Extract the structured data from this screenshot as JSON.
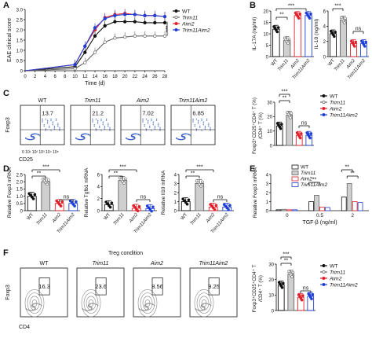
{
  "colors": {
    "wt": "#111111",
    "trim11": "#666666",
    "aim2": "#e0202a",
    "dko": "#1f3fd6"
  },
  "panel_letters": [
    "A",
    "B",
    "C",
    "D",
    "E",
    "F"
  ],
  "groups": {
    "wt": "WT",
    "trim11": "Trim11",
    "aim2": "Aim2",
    "dko": "Trim11Aim2"
  },
  "panel_A": {
    "ylabel": "EAE clinical score",
    "xlabel": "Time (d)",
    "x_ticks": [
      "0",
      "2",
      "4",
      "6",
      "8",
      "10",
      "12",
      "14",
      "16",
      "18",
      "20",
      "22",
      "24",
      "26",
      "28"
    ],
    "y_ticks": [
      "0",
      "0.5",
      "1.0",
      "1.5",
      "2.0",
      "2.5",
      "3.0"
    ],
    "sig": "***"
  },
  "panel_B": {
    "ylabel_left": "IL-17A (ng/ml)",
    "ylabel_right": "IL-10 (ng/ml)",
    "left_ticks": [
      "0",
      "5",
      "10",
      "15",
      "20"
    ],
    "right_ticks": [
      "0",
      "2",
      "4",
      "6"
    ],
    "sig_left": [
      "***",
      "**"
    ],
    "sig_right": [
      "***",
      "ns"
    ]
  },
  "panel_C": {
    "titles": [
      "WT",
      "Trim11",
      "Aim2",
      "Trim11Aim2"
    ],
    "values": [
      "13.7",
      "21.2",
      "7.02",
      "6.85"
    ],
    "ylabel": "Foxp3",
    "xlabel": "CD25",
    "ticks": "0 10¹ 10² 10³ 10⁴ 10⁵",
    "bar_ylabel": "Foxp3⁺CD25⁺CD4⁺ T (%)",
    "bar_ylabel2": "/CD4⁺ T (%)",
    "bar_ticks": [
      "0",
      "10",
      "20",
      "30"
    ],
    "sig": [
      "***",
      "**",
      "ns"
    ]
  },
  "panel_D": {
    "ylabels": [
      "Relative Foxp3 mRNA",
      "Relative Tgfb1 mRNA",
      "Relative Il10 mRNA"
    ],
    "ticks": [
      [
        "0",
        "0.5",
        "1.0",
        "1.5",
        "2.0",
        "2.5"
      ],
      [
        "0",
        "2",
        "4",
        "6"
      ],
      [
        "0",
        "1",
        "2",
        "3",
        "4"
      ]
    ],
    "sig": [
      "***",
      "**",
      "ns"
    ]
  },
  "panel_E": {
    "ylabel": "Relative Foxp3 mRNA",
    "xlabel": "TGF-β (ng/ml)",
    "x_ticks": [
      "0",
      "0.5",
      "2"
    ],
    "y_ticks": [
      "0",
      "1",
      "2",
      "3",
      "4"
    ],
    "sig": [
      "**",
      "**",
      "**",
      "**"
    ]
  },
  "panel_F": {
    "condition": "Treg condition",
    "titles": [
      "WT",
      "Trim11",
      "Aim2",
      "Trim11Aim2"
    ],
    "values": [
      "16.3",
      "23.6",
      "8.56",
      "9.25"
    ],
    "ylabel": "Foxp3",
    "xlabel": "CD4",
    "bar_ylabel": "Foxp3⁺CD25⁺CD4⁺ T",
    "bar_ylabel2": "/CD4⁺ T (%)",
    "bar_ticks": [
      "0",
      "10",
      "20",
      "30"
    ],
    "sig": [
      "***",
      "**",
      "ns"
    ]
  },
  "chart_data": [
    {
      "type": "line",
      "panel": "A",
      "xlabel": "Time (d)",
      "ylabel": "EAE clinical score",
      "ylim": [
        0,
        3.0
      ],
      "x": [
        10,
        12,
        14,
        16,
        18,
        20,
        22,
        24,
        26,
        28
      ],
      "series": [
        {
          "name": "WT",
          "values": [
            0.2,
            0.9,
            1.7,
            2.2,
            2.4,
            2.4,
            2.4,
            2.35,
            2.35,
            2.35
          ]
        },
        {
          "name": "Trim11",
          "values": [
            0.1,
            0.4,
            0.9,
            1.4,
            1.6,
            1.65,
            1.7,
            1.7,
            1.7,
            1.7
          ]
        },
        {
          "name": "Aim2",
          "values": [
            0.3,
            1.2,
            2.0,
            2.6,
            2.75,
            2.8,
            2.75,
            2.7,
            2.7,
            2.65
          ]
        },
        {
          "name": "Trim11Aim2",
          "values": [
            0.3,
            1.2,
            2.1,
            2.55,
            2.7,
            2.75,
            2.75,
            2.7,
            2.7,
            2.65
          ]
        }
      ]
    },
    {
      "type": "bar",
      "panel": "B-left",
      "ylabel": "IL-17A (ng/ml)",
      "ylim": [
        0,
        20
      ],
      "categories": [
        "WT",
        "Trim11",
        "Aim2",
        "Trim11Aim2"
      ],
      "values": [
        12,
        7,
        18,
        18
      ]
    },
    {
      "type": "bar",
      "panel": "B-right",
      "ylabel": "IL-10 (ng/ml)",
      "ylim": [
        0,
        6
      ],
      "categories": [
        "WT",
        "Trim11",
        "Aim2",
        "Trim11Aim2"
      ],
      "values": [
        3.0,
        4.8,
        1.7,
        1.7
      ]
    },
    {
      "type": "bar",
      "panel": "C",
      "ylim": [
        0,
        30
      ],
      "categories": [
        "WT",
        "Trim11",
        "Aim2",
        "Trim11Aim2"
      ],
      "values": [
        13.5,
        21,
        7,
        7
      ]
    },
    {
      "type": "bar",
      "panel": "D-Foxp3",
      "ylabel": "Relative Foxp3 mRNA",
      "ylim": [
        0,
        2.5
      ],
      "categories": [
        "WT",
        "Trim11",
        "Aim2",
        "Trim11Aim2"
      ],
      "values": [
        1.0,
        2.0,
        0.5,
        0.5
      ]
    },
    {
      "type": "bar",
      "panel": "D-Tgfb1",
      "ylabel": "Relative Tgfb1 mRNA",
      "ylim": [
        0,
        6
      ],
      "categories": [
        "WT",
        "Trim11",
        "Aim2",
        "Trim11Aim2"
      ],
      "values": [
        1.0,
        5.0,
        0.4,
        0.35
      ]
    },
    {
      "type": "bar",
      "panel": "D-Il10",
      "ylabel": "Relative Il10 mRNA",
      "ylim": [
        0,
        4
      ],
      "categories": [
        "WT",
        "Trim11",
        "Aim2",
        "Trim11Aim2"
      ],
      "values": [
        1.0,
        3.0,
        0.4,
        0.4
      ]
    },
    {
      "type": "bar",
      "panel": "E",
      "ylabel": "Relative Foxp3 mRNA",
      "xlabel": "TGF-β (ng/ml)",
      "ylim": [
        0,
        4
      ],
      "categories": [
        "0",
        "0.5",
        "2"
      ],
      "series": [
        {
          "name": "WT",
          "values": [
            0.1,
            1.0,
            1.5
          ]
        },
        {
          "name": "Trim11",
          "values": [
            0.15,
            1.7,
            3.0
          ]
        },
        {
          "name": "Aim2",
          "values": [
            0.1,
            0.4,
            1.0
          ]
        },
        {
          "name": "Trim11Aim2",
          "values": [
            0.1,
            0.35,
            0.9
          ]
        }
      ]
    },
    {
      "type": "bar",
      "panel": "F",
      "ylim": [
        0,
        30
      ],
      "categories": [
        "WT",
        "Trim11",
        "Aim2",
        "Trim11Aim2"
      ],
      "values": [
        16.5,
        23.5,
        8.5,
        9.2
      ]
    }
  ]
}
